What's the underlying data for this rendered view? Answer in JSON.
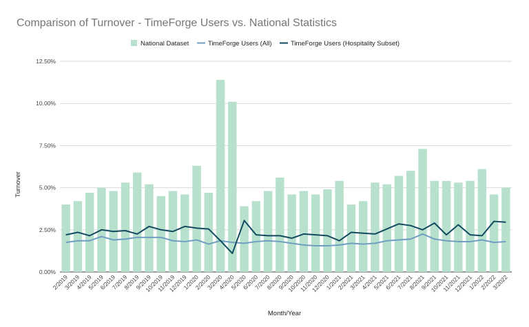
{
  "chart_data": {
    "type": "bar",
    "title": "Comparison of Turnover - TimeForge Users vs. National Statistics",
    "xlabel": "Month/Year",
    "ylabel": "Turnover",
    "ylim": [
      0,
      12.5
    ],
    "yticks": [
      "0.00%",
      "2.50%",
      "5.00%",
      "7.50%",
      "10.00%",
      "12.50%"
    ],
    "grid": true,
    "legend_position": "top",
    "categories": [
      "2/2019",
      "3/2019",
      "4/2019",
      "5/2019",
      "6/2019",
      "7/2019",
      "8/2019",
      "9/2019",
      "10/2019",
      "11/2019",
      "12/2019",
      "1/2020",
      "2/2020",
      "3/2020",
      "4/2020",
      "5/2020",
      "6/2020",
      "7/2020",
      "8/2020",
      "9/2020",
      "10/2020",
      "11/2020",
      "12/2020",
      "1/2021",
      "2/2021",
      "3/2021",
      "4/2021",
      "5/2021",
      "6/2021",
      "7/2021",
      "8/2021",
      "9/2021",
      "10/2021",
      "11/2021",
      "12/2021",
      "1/2022",
      "2/2022",
      "3/2022"
    ],
    "series": [
      {
        "name": "National Dataset",
        "type": "bar",
        "color": "#b7e1cd",
        "values": [
          4.0,
          4.2,
          4.7,
          5.0,
          4.8,
          5.3,
          5.9,
          5.2,
          4.5,
          4.8,
          4.6,
          6.3,
          4.7,
          11.4,
          10.1,
          3.9,
          4.2,
          4.8,
          5.6,
          4.6,
          4.8,
          4.6,
          4.9,
          5.4,
          4.0,
          4.2,
          5.3,
          5.2,
          5.7,
          6.0,
          7.3,
          5.4,
          5.4,
          5.3,
          5.4,
          6.1,
          4.6,
          5.0
        ]
      },
      {
        "name": "TimeForge Users (All)",
        "type": "line",
        "color": "#6f9ec2",
        "values": [
          1.75,
          1.85,
          1.85,
          2.1,
          1.9,
          1.95,
          2.05,
          2.05,
          2.05,
          1.85,
          1.8,
          1.9,
          1.65,
          1.85,
          1.75,
          1.7,
          1.8,
          1.85,
          1.8,
          1.7,
          1.6,
          1.55,
          1.55,
          1.6,
          1.7,
          1.65,
          1.7,
          1.85,
          1.9,
          1.95,
          2.25,
          1.95,
          1.85,
          1.8,
          1.8,
          1.9,
          1.75,
          1.8
        ]
      },
      {
        "name": "TimeForge Users (Hospitality Subset)",
        "type": "line",
        "color": "#124a60",
        "values": [
          2.2,
          2.35,
          2.15,
          2.5,
          2.4,
          2.45,
          2.25,
          2.7,
          2.5,
          2.4,
          2.7,
          2.6,
          2.55,
          1.85,
          1.1,
          3.05,
          2.2,
          2.15,
          2.15,
          2.0,
          2.25,
          2.2,
          2.15,
          1.85,
          2.35,
          2.3,
          2.25,
          2.55,
          2.85,
          2.75,
          2.5,
          2.9,
          2.2,
          2.8,
          2.2,
          2.15,
          3.0,
          2.95
        ]
      }
    ]
  }
}
